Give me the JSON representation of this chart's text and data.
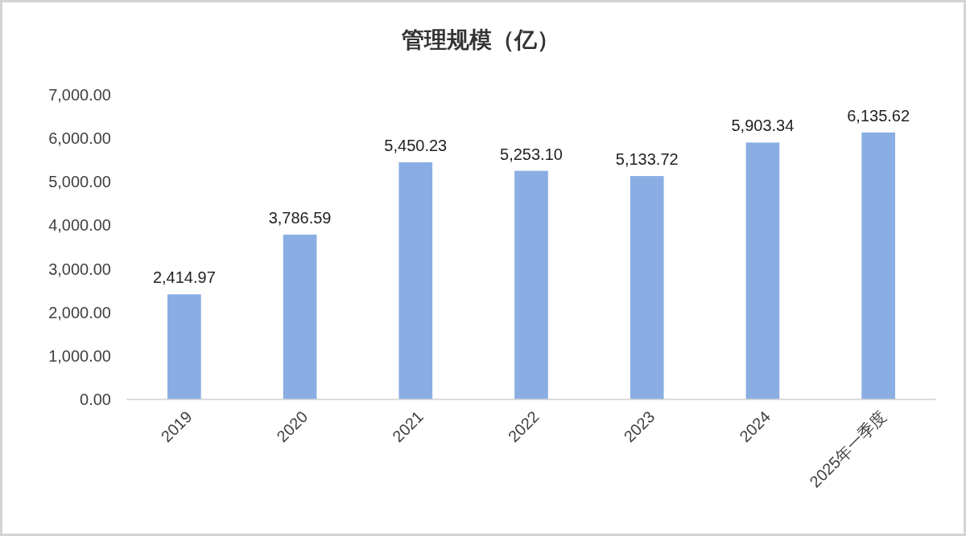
{
  "chart_data": {
    "type": "bar",
    "title": "管理规模（亿）",
    "categories": [
      "2019",
      "2020",
      "2021",
      "2022",
      "2023",
      "2024",
      "2025年一季度"
    ],
    "values": [
      2414.97,
      3786.59,
      5450.23,
      5253.1,
      5133.72,
      5903.34,
      6135.62
    ],
    "value_labels": [
      "2,414.97",
      "3,786.59",
      "5,450.23",
      "5,253.10",
      "5,133.72",
      "5,903.34",
      "6,135.62"
    ],
    "color": "#8aaee3",
    "ylim": [
      0,
      7000
    ],
    "yticks": [
      {
        "value": 0,
        "label": "0.00"
      },
      {
        "value": 1000,
        "label": "1,000.00"
      },
      {
        "value": 2000,
        "label": "2,000.00"
      },
      {
        "value": 3000,
        "label": "3,000.00"
      },
      {
        "value": 4000,
        "label": "4,000.00"
      },
      {
        "value": 5000,
        "label": "5,000.00"
      },
      {
        "value": 6000,
        "label": "6,000.00"
      },
      {
        "value": 7000,
        "label": "7,000.00"
      }
    ]
  }
}
